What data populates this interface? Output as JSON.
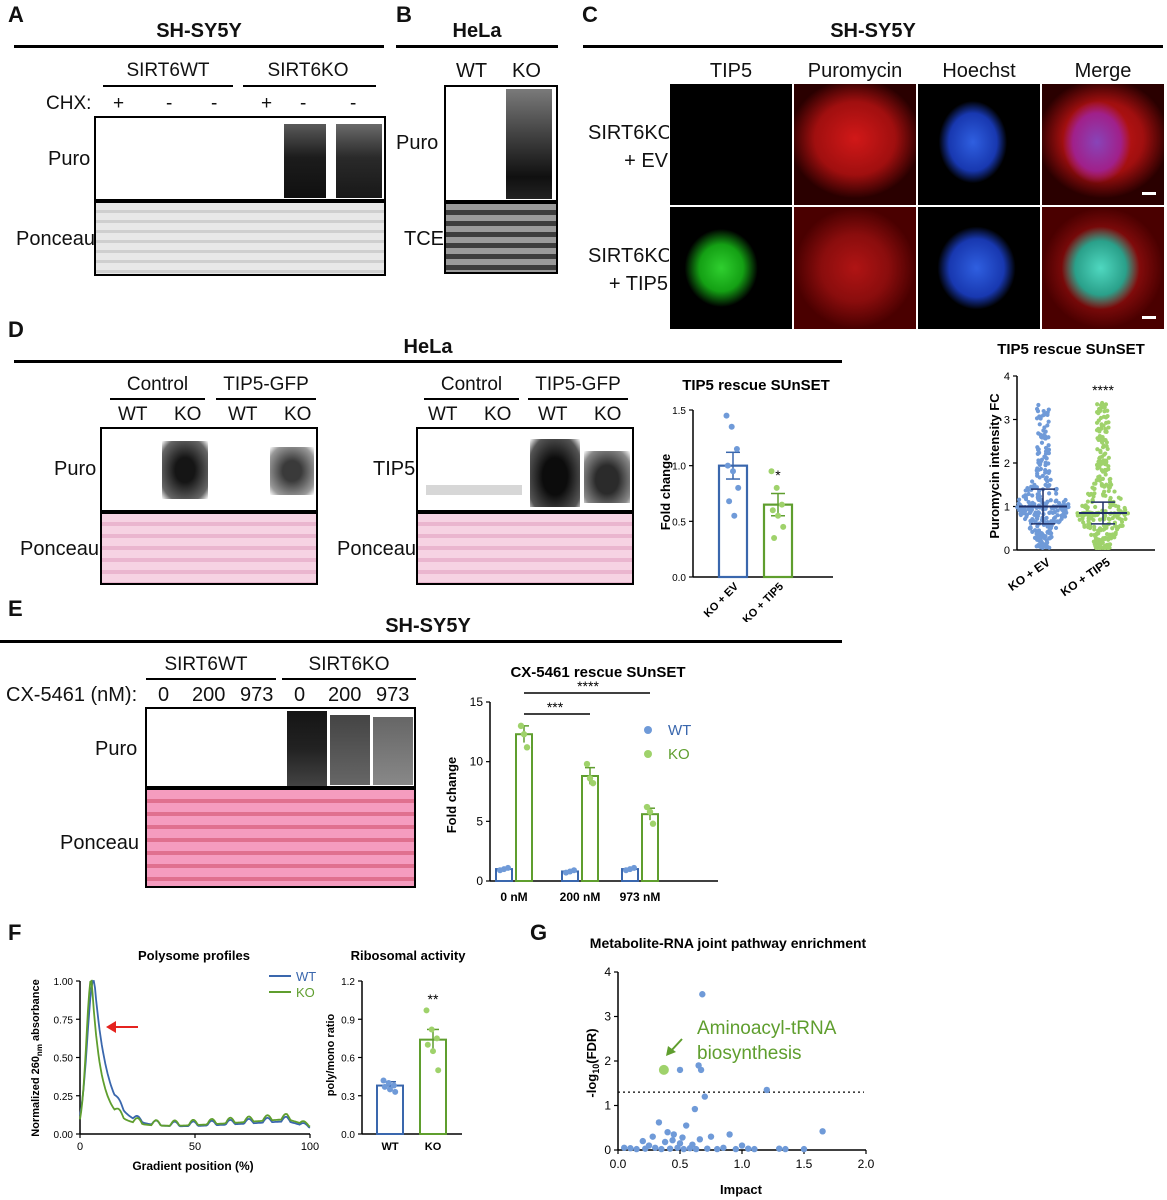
{
  "panels": {
    "A": "A",
    "B": "B",
    "C": "C",
    "D": "D",
    "E": "E",
    "F": "F",
    "G": "G"
  },
  "panelA": {
    "header": "SH-SY5Y",
    "group1": "SIRT6WT",
    "group2": "SIRT6KO",
    "chx_label": "CHX:",
    "chx": [
      "+",
      "-",
      "-",
      "+",
      "-",
      "-"
    ],
    "row1": "Puro",
    "row2": "Ponceau"
  },
  "panelB": {
    "header": "HeLa",
    "lanes": [
      "WT",
      "KO"
    ],
    "row1": "Puro",
    "row2": "TCE"
  },
  "panelC": {
    "header": "SH-SY5Y",
    "columns": [
      "TIP5",
      "Puromycin",
      "Hoechst",
      "Merge"
    ],
    "row1_l1": "SIRT6KO",
    "row1_l2": "+ EV",
    "row2_l1": "SIRT6KO",
    "row2_l2": "+ TIP5"
  },
  "panelD": {
    "header": "HeLa",
    "group1": "Control",
    "group2": "TIP5-GFP",
    "lanes": [
      "WT",
      "KO",
      "WT",
      "KO"
    ],
    "row_puro": "Puro",
    "row_tip5": "TIP5",
    "row_ponceau": "Ponceau"
  },
  "panelE": {
    "header": "SH-SY5Y",
    "group1": "SIRT6WT",
    "group2": "SIRT6KO",
    "cx_label": "CX-5461 (nM):",
    "doses": [
      "0",
      "200",
      "973",
      "0",
      "200",
      "973"
    ],
    "row1": "Puro",
    "row2": "Ponceau"
  },
  "colors": {
    "wt": "#3a67ad",
    "ko": "#5f9e2e",
    "wt_dot": "#6f9ad8",
    "ko_dot": "#9fd26b",
    "ponceauD": "#f3c9dc",
    "ponceauE": "#f08fb5"
  },
  "chart_data": [
    {
      "id": "d_bar",
      "type": "bar",
      "title": "TIP5 rescue SUnSET",
      "ylabel": "Fold change",
      "categories": [
        "KO + EV",
        "KO + TIP5"
      ],
      "values": [
        1.0,
        0.65
      ],
      "errors": [
        0.12,
        0.1
      ],
      "ylim": [
        0,
        1.5
      ],
      "yticks": [
        "0.0",
        "0.5",
        "1.0",
        "1.5"
      ],
      "annotation": "*",
      "points": [
        [
          1.45,
          1.35,
          1.15,
          1.0,
          0.95,
          0.8,
          0.68,
          0.55
        ],
        [
          0.95,
          0.8,
          0.65,
          0.6,
          0.55,
          0.45,
          0.35
        ]
      ]
    },
    {
      "id": "c_scatter",
      "type": "scatter",
      "title": "TIP5 rescue SUnSET",
      "ylabel": "Puromycin intensity FC",
      "categories": [
        "KO + EV",
        "KO + TIP5"
      ],
      "means": [
        1.0,
        0.85
      ],
      "sd": [
        0.4,
        0.25
      ],
      "ylim": [
        0,
        4
      ],
      "yticks": [
        "0",
        "1",
        "2",
        "3",
        "4"
      ],
      "annotation": "****"
    },
    {
      "id": "e_bar",
      "type": "bar",
      "title": "CX-5461 rescue SUnSET",
      "ylabel": "Fold change",
      "categories": [
        "0 nM",
        "200 nM",
        "973 nM"
      ],
      "series": [
        {
          "name": "WT",
          "values": [
            1.0,
            0.8,
            1.0
          ]
        },
        {
          "name": "KO",
          "values": [
            12.3,
            8.8,
            5.6
          ]
        }
      ],
      "ko_errors": [
        0.7,
        0.7,
        0.5
      ],
      "ylim": [
        0,
        15
      ],
      "yticks": [
        "0",
        "5",
        "10",
        "15"
      ],
      "annotations": [
        "***",
        "****"
      ],
      "points_ko": [
        [
          13.0,
          12.3,
          11.2
        ],
        [
          9.8,
          8.6,
          8.2
        ],
        [
          6.2,
          5.8,
          4.8
        ]
      ]
    },
    {
      "id": "f_line",
      "type": "line",
      "title": "Polysome profiles",
      "xlabel": "Gradient position  (%)",
      "ylabel_pre": "Normalized 260",
      "ylabel_sub": "nm",
      "ylabel_post": " absorbance",
      "xlim": [
        0,
        100
      ],
      "ylim": [
        0,
        1
      ],
      "xticks": [
        "0",
        "50",
        "100"
      ],
      "yticks": [
        "0.00",
        "0.25",
        "0.50",
        "0.75",
        "1.00"
      ],
      "series": [
        {
          "name": "WT"
        },
        {
          "name": "KO"
        }
      ]
    },
    {
      "id": "f_bar",
      "type": "bar",
      "title": "Ribosomal activity",
      "ylabel": "poly/mono ratio",
      "categories": [
        "WT",
        "KO"
      ],
      "values": [
        0.38,
        0.74
      ],
      "errors": [
        0.03,
        0.08
      ],
      "ylim": [
        0,
        1.2
      ],
      "yticks": [
        "0.0",
        "0.3",
        "0.6",
        "0.9",
        "1.2"
      ],
      "annotation": "**",
      "points": [
        [
          0.42,
          0.4,
          0.38,
          0.37,
          0.35,
          0.33
        ],
        [
          0.97,
          0.82,
          0.75,
          0.7,
          0.65,
          0.5
        ]
      ]
    },
    {
      "id": "g_scatter",
      "type": "scatter",
      "title": "Metabolite-RNA joint pathway enrichment",
      "xlabel": "Impact",
      "ylabel_pre": "-log",
      "ylabel_sub": "10",
      "ylabel_post": "(FDR)",
      "xlim": [
        0,
        2
      ],
      "ylim": [
        0,
        4
      ],
      "xticks": [
        "0.0",
        "0.5",
        "1.0",
        "1.5",
        "2.0"
      ],
      "yticks": [
        "0",
        "1",
        "2",
        "3",
        "4"
      ],
      "threshold": 1.3,
      "highlight": {
        "x": 0.37,
        "y": 1.8,
        "label_line1": "Aminoacyl-tRNA",
        "label_line2": "biosynthesis"
      },
      "points": [
        [
          0.68,
          3.5
        ],
        [
          0.65,
          1.9
        ],
        [
          0.5,
          1.8
        ],
        [
          0.67,
          1.8
        ],
        [
          1.2,
          1.35
        ],
        [
          0.7,
          1.2
        ],
        [
          0.62,
          0.92
        ],
        [
          1.65,
          0.42
        ],
        [
          0.33,
          0.62
        ],
        [
          0.55,
          0.55
        ],
        [
          0.4,
          0.4
        ],
        [
          0.45,
          0.35
        ],
        [
          0.28,
          0.3
        ],
        [
          0.9,
          0.35
        ],
        [
          0.75,
          0.3
        ],
        [
          0.2,
          0.2
        ],
        [
          0.38,
          0.18
        ],
        [
          0.5,
          0.15
        ],
        [
          0.6,
          0.12
        ],
        [
          1.0,
          0.1
        ],
        [
          0.05,
          0.05
        ],
        [
          0.1,
          0.04
        ],
        [
          0.15,
          0.02
        ],
        [
          0.22,
          0.03
        ],
        [
          0.3,
          0.05
        ],
        [
          0.35,
          0.02
        ],
        [
          0.42,
          0.03
        ],
        [
          0.48,
          0.05
        ],
        [
          0.53,
          0.02
        ],
        [
          0.58,
          0.04
        ],
        [
          0.63,
          0.02
        ],
        [
          0.72,
          0.03
        ],
        [
          0.8,
          0.02
        ],
        [
          0.85,
          0.05
        ],
        [
          0.95,
          0.02
        ],
        [
          1.05,
          0.03
        ],
        [
          1.1,
          0.02
        ],
        [
          1.3,
          0.03
        ],
        [
          1.35,
          0.02
        ],
        [
          1.5,
          0.02
        ],
        [
          0.25,
          0.1
        ],
        [
          0.44,
          0.22
        ],
        [
          0.52,
          0.28
        ],
        [
          0.66,
          0.24
        ]
      ]
    }
  ]
}
